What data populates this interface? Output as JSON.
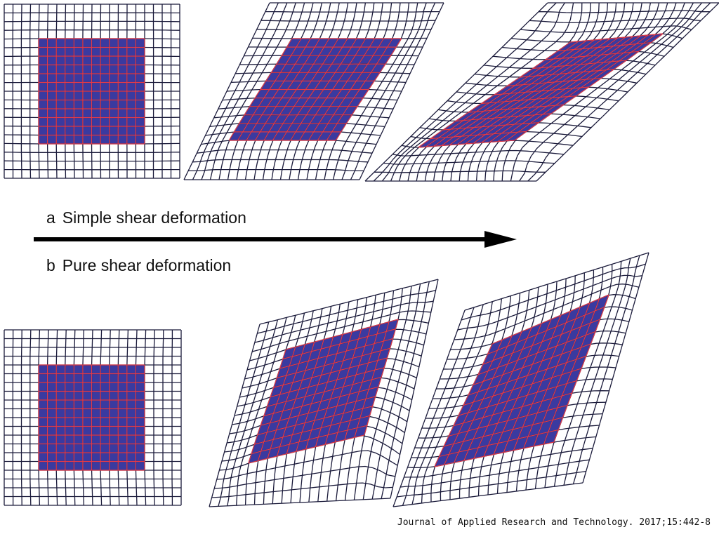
{
  "captions": {
    "simple_letter": "a",
    "simple_label": "Simple shear deformation",
    "pure_letter": "b",
    "pure_label": "Pure shear deformation"
  },
  "citation": "Journal of Applied Research and Technology. 2017;15:442-8",
  "colors": {
    "grid_line": "#1a1a3a",
    "inner_fill": "#3a3aa0",
    "inner_line": "#e23a4a",
    "arrow": "#000000",
    "background": "#ffffff"
  },
  "grid": {
    "outer_cells": 20,
    "inner_cells": 12
  },
  "rows": [
    {
      "name": "simple-shear",
      "panels": [
        {
          "stage": "initial",
          "shear": 0
        },
        {
          "stage": "intermediate",
          "shear": 0.5
        },
        {
          "stage": "final",
          "shear": 1.0
        }
      ]
    },
    {
      "name": "pure-shear",
      "panels": [
        {
          "stage": "initial",
          "shear": 0
        },
        {
          "stage": "intermediate",
          "shear": 0.5
        },
        {
          "stage": "final",
          "shear": 1.0
        }
      ]
    }
  ]
}
